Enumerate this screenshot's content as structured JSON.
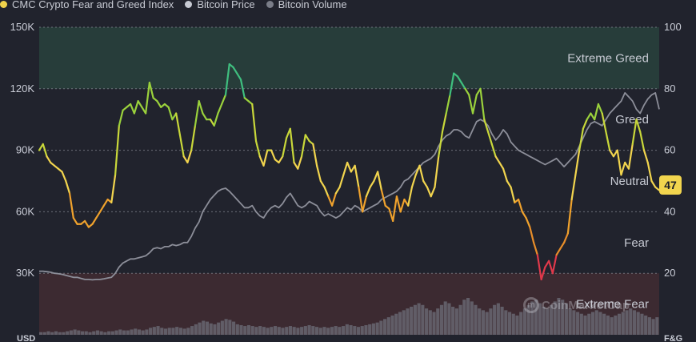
{
  "legend": {
    "items": [
      {
        "label": "CMC Crypto Fear and Greed Index",
        "color": "#f0d24b"
      },
      {
        "label": "Bitcoin Price",
        "color": "#c7cad3"
      },
      {
        "label": "Bitcoin Volume",
        "color": "#7a7d88"
      }
    ]
  },
  "watermark": {
    "text": "CoinMarketCap"
  },
  "chart_data": {
    "type": "line",
    "title": "CMC Crypto Fear and Greed Index",
    "left_axis": {
      "unit": "USD",
      "ticks": [
        "30K",
        "60K",
        "90K",
        "120K",
        "150K"
      ],
      "tick_values": [
        30000,
        60000,
        90000,
        120000,
        150000
      ],
      "range": [
        0,
        150000
      ]
    },
    "right_axis": {
      "unit": "F&G",
      "ticks": [
        "20",
        "40",
        "60",
        "80",
        "100"
      ],
      "tick_values": [
        20,
        40,
        60,
        80,
        100
      ],
      "range": [
        0,
        100
      ]
    },
    "zones": [
      {
        "label": "Extreme Greed",
        "from": 80,
        "to": 100
      },
      {
        "label": "Greed",
        "from": 60,
        "to": 80
      },
      {
        "label": "Neutral",
        "from": 40,
        "to": 60
      },
      {
        "label": "Fear",
        "from": 20,
        "to": 40
      },
      {
        "label": "Extreme Fear",
        "from": 0,
        "to": 20
      }
    ],
    "current_value": "47",
    "series": [
      {
        "name": "CMC Crypto Fear and Greed Index",
        "axis": "right",
        "values": [
          60,
          62,
          58,
          56,
          55,
          54,
          53,
          50,
          46,
          38,
          36,
          36,
          37,
          35,
          36,
          38,
          40,
          42,
          44,
          43,
          52,
          68,
          73,
          74,
          75,
          72,
          76,
          74,
          72,
          82,
          77,
          76,
          74,
          75,
          74,
          70,
          72,
          65,
          58,
          56,
          60,
          68,
          76,
          72,
          70,
          70,
          68,
          72,
          75,
          78,
          88,
          87,
          85,
          83,
          77,
          76,
          75,
          63,
          58,
          55,
          60,
          60,
          57,
          56,
          58,
          64,
          67,
          56,
          54,
          58,
          65,
          63,
          62,
          55,
          50,
          48,
          45,
          42,
          46,
          48,
          52,
          56,
          53,
          55,
          48,
          40,
          45,
          48,
          50,
          53,
          47,
          42,
          41,
          37,
          45,
          40,
          44,
          42,
          48,
          52,
          55,
          50,
          48,
          45,
          48,
          58,
          66,
          72,
          78,
          85,
          84,
          82,
          80,
          78,
          72,
          78,
          80,
          70,
          66,
          62,
          58,
          56,
          54,
          50,
          48,
          43,
          44,
          40,
          38,
          35,
          30,
          26,
          18,
          22,
          24,
          20,
          26,
          28,
          30,
          33,
          44,
          52,
          60,
          67,
          70,
          72,
          70,
          75,
          72,
          66,
          60,
          58,
          60,
          52,
          56,
          54,
          62,
          70,
          66,
          60,
          56,
          50,
          48,
          47
        ]
      },
      {
        "name": "Bitcoin Price",
        "axis": "left",
        "values": [
          31000,
          31000,
          30800,
          30500,
          30000,
          29800,
          29500,
          29000,
          28500,
          28000,
          28000,
          27500,
          27000,
          27000,
          26800,
          27000,
          27000,
          27300,
          27700,
          28000,
          30000,
          33000,
          35000,
          36000,
          37000,
          37000,
          37500,
          38000,
          38500,
          40000,
          42000,
          42500,
          42000,
          43000,
          43000,
          44000,
          43500,
          44000,
          45000,
          45000,
          48000,
          52000,
          55000,
          60000,
          63000,
          66000,
          68000,
          70000,
          71000,
          71500,
          70000,
          68000,
          66000,
          64000,
          62000,
          62000,
          63000,
          60000,
          58000,
          57000,
          60000,
          62000,
          63000,
          62000,
          64000,
          67000,
          69000,
          66000,
          63000,
          62000,
          63000,
          65000,
          64000,
          63000,
          60000,
          58000,
          59000,
          58000,
          57000,
          58000,
          60000,
          62000,
          61000,
          63000,
          62000,
          60000,
          61000,
          62000,
          63000,
          64000,
          66000,
          67000,
          68000,
          69000,
          70000,
          72000,
          75000,
          76000,
          78000,
          80000,
          82000,
          84000,
          85000,
          86000,
          88000,
          92000,
          95000,
          97000,
          98000,
          100000,
          100000,
          99000,
          97000,
          96000,
          100000,
          104000,
          105000,
          104000,
          102000,
          98000,
          95000,
          97000,
          100000,
          98000,
          94000,
          92000,
          90000,
          89000,
          88000,
          87000,
          86000,
          85000,
          84000,
          83000,
          84000,
          85000,
          86000,
          84000,
          82000,
          84000,
          86000,
          88000,
          92000,
          96000,
          100000,
          103000,
          104000,
          103000,
          102000,
          105000,
          108000,
          110000,
          112000,
          114000,
          118000,
          116000,
          114000,
          110000,
          108000,
          112000,
          115000,
          117000,
          118000,
          110000
        ]
      },
      {
        "name": "Bitcoin Volume",
        "axis": "none",
        "values": [
          3,
          3,
          4,
          3,
          4,
          3,
          3,
          4,
          5,
          6,
          5,
          4,
          4,
          3,
          4,
          5,
          4,
          3,
          4,
          4,
          5,
          6,
          5,
          5,
          6,
          7,
          6,
          5,
          6,
          8,
          9,
          10,
          8,
          7,
          8,
          8,
          9,
          8,
          7,
          8,
          10,
          12,
          14,
          16,
          15,
          13,
          12,
          14,
          16,
          18,
          17,
          15,
          12,
          11,
          10,
          11,
          10,
          9,
          10,
          9,
          8,
          9,
          10,
          9,
          8,
          9,
          10,
          9,
          8,
          9,
          10,
          11,
          10,
          9,
          8,
          9,
          8,
          9,
          10,
          9,
          10,
          12,
          11,
          10,
          9,
          10,
          11,
          12,
          13,
          14,
          16,
          18,
          20,
          22,
          24,
          26,
          28,
          30,
          32,
          34,
          36,
          34,
          30,
          28,
          26,
          30,
          34,
          38,
          36,
          32,
          30,
          34,
          40,
          42,
          38,
          34,
          30,
          28,
          26,
          30,
          34,
          36,
          32,
          28,
          26,
          24,
          22,
          26,
          30,
          34,
          38,
          40,
          36,
          32,
          30,
          34,
          38,
          42,
          40,
          36,
          30,
          28,
          26,
          24,
          22,
          24,
          26,
          28,
          26,
          24,
          22,
          20,
          22,
          24,
          26,
          28,
          30,
          28,
          26,
          24,
          22,
          20,
          18,
          20
        ]
      }
    ]
  }
}
